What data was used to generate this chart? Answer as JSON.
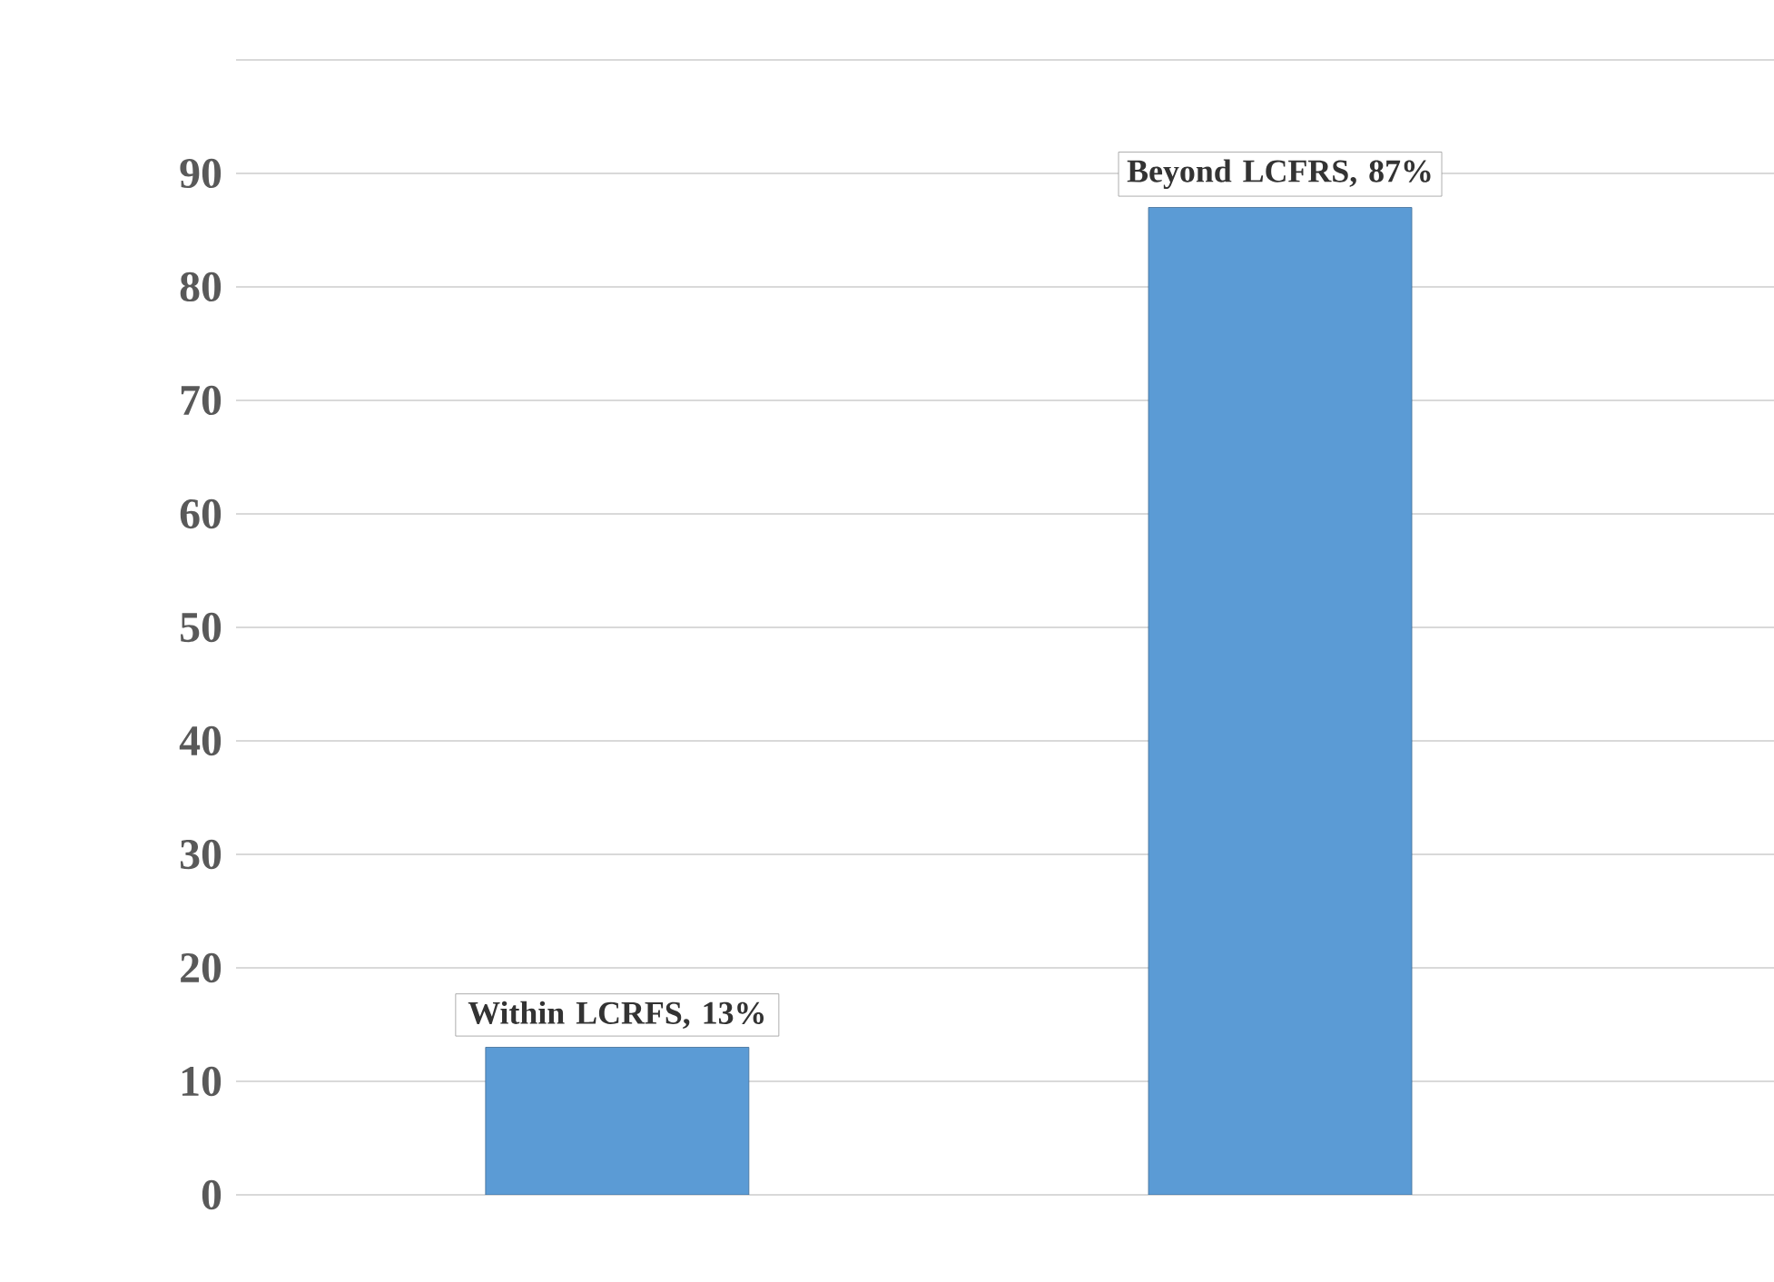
{
  "chart_data": {
    "type": "bar",
    "categories": [
      null,
      null
    ],
    "values": [
      13,
      87
    ],
    "color": "#5b9bd5",
    "value_labels": [
      "Within LCRFS, 13%",
      "Beyond LCFRS, 87%"
    ],
    "ylim": [
      0,
      100
    ],
    "yticks": [
      0,
      10,
      20,
      30,
      40,
      50,
      60,
      70,
      80,
      90,
      {
        "value": 100,
        "label": null
      }
    ],
    "grid": "y"
  }
}
